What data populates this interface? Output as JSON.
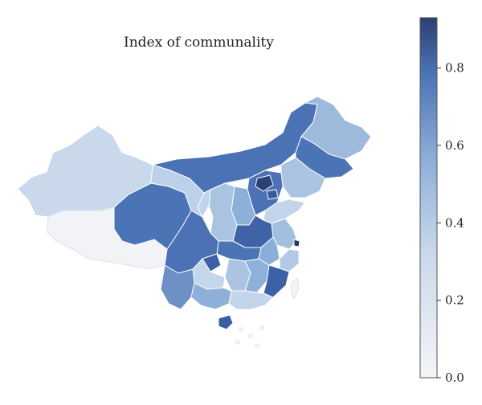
{
  "title": "Index of communality",
  "colorbar": {
    "ticks": [
      "0.0",
      "0.2",
      "0.4",
      "0.6",
      "0.8"
    ],
    "min": 0.0,
    "max": 0.93,
    "colors": {
      "low": "#f4f5f8",
      "mid": "#8fb0d8",
      "high": "#2b3f73"
    }
  },
  "chart_data": {
    "type": "heatmap",
    "title": "Index of communality",
    "colorbar_range": [
      0.0,
      0.93
    ],
    "colorbar_ticks": [
      0.0,
      0.2,
      0.4,
      0.6,
      0.8
    ],
    "regions_values": [
      0.02,
      0.3,
      0.6,
      0.38,
      0.62,
      0.6,
      0.35,
      0.6,
      0.9,
      0.78,
      0.32,
      0.6,
      0.55,
      0.6,
      0.6,
      0.45,
      0.7,
      0.38,
      0.5,
      0.8,
      0.4,
      0.3,
      0.35,
      0.45,
      0.5,
      0.78,
      0.85
    ]
  }
}
